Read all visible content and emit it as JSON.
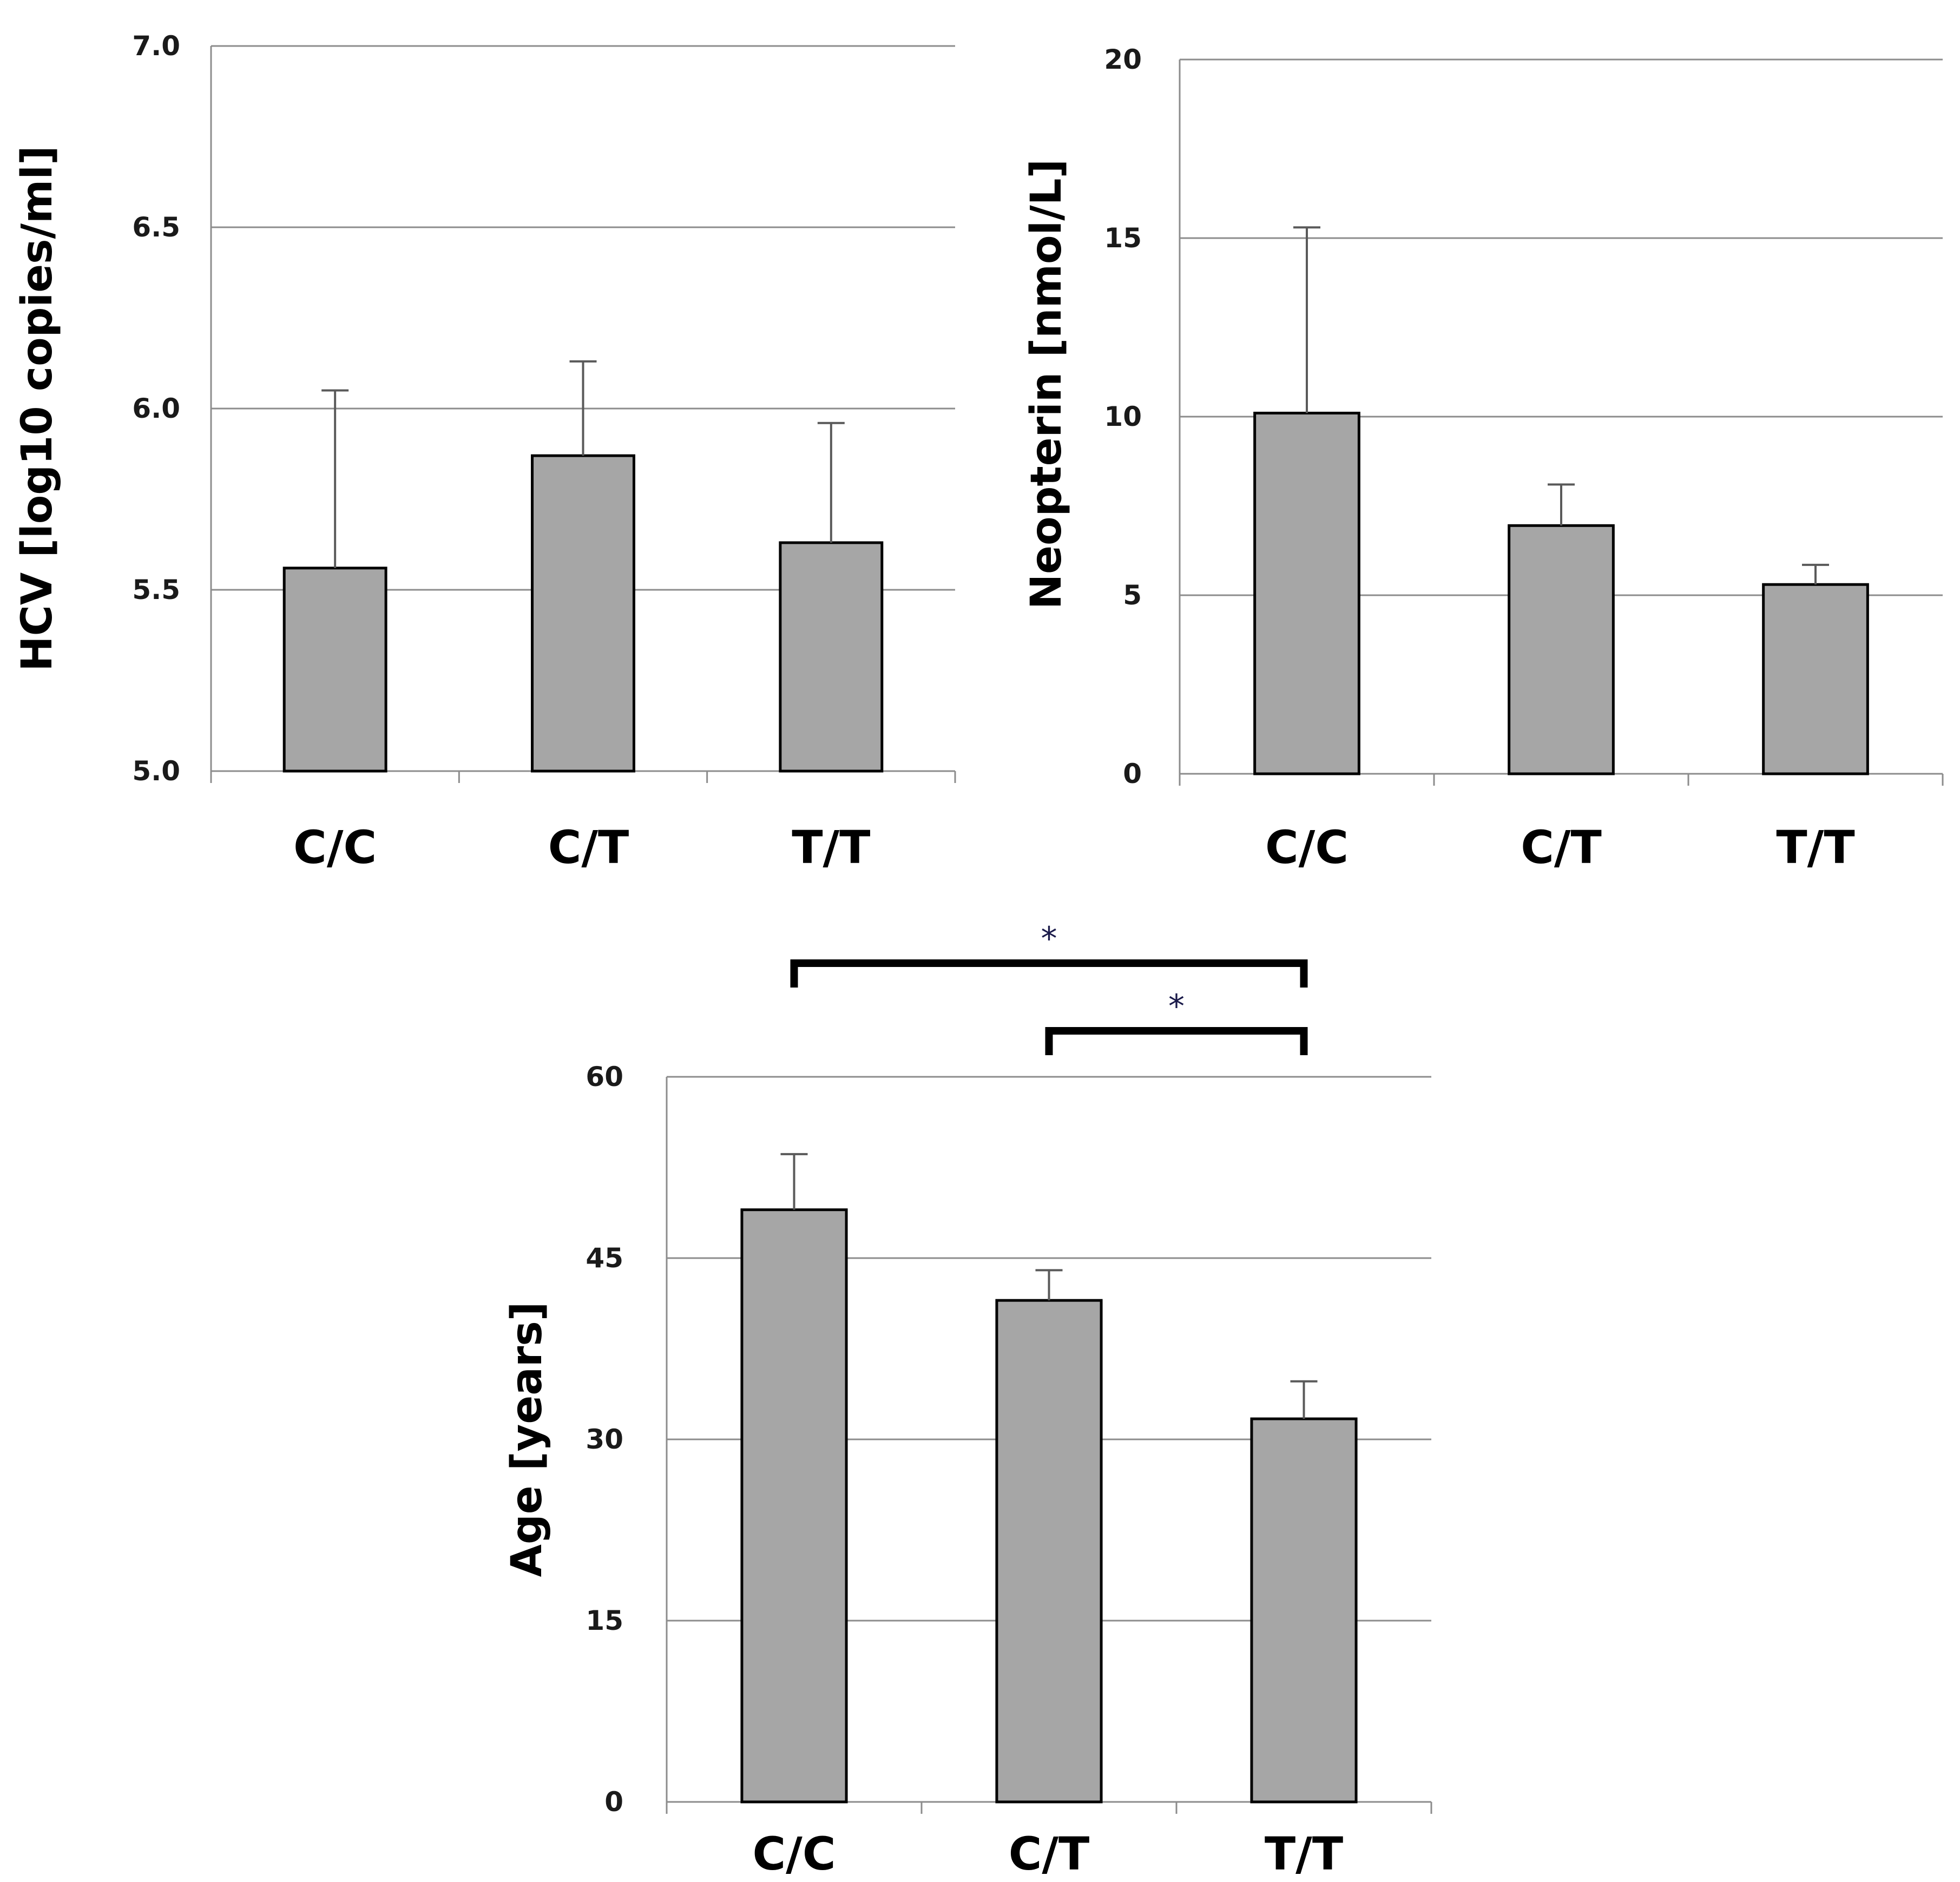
{
  "chart_data": [
    {
      "type": "bar",
      "id": "hcv",
      "title": "",
      "xlabel": "",
      "ylabel": "HCV [log10 copies/ml]",
      "categories": [
        "C/C",
        "C/T",
        "T/T"
      ],
      "values": [
        5.56,
        5.87,
        5.63
      ],
      "error_upper": [
        6.05,
        6.13,
        5.96
      ],
      "ylim": [
        5.0,
        7.0
      ],
      "yticks": [
        "5.0",
        "5.5",
        "6.0",
        "6.5",
        "7.0"
      ],
      "grid": true,
      "bar_color": "#a6a6a6",
      "significance": []
    },
    {
      "type": "bar",
      "id": "neopterin",
      "title": "",
      "xlabel": "",
      "ylabel": "Neopterin [nmol/L]",
      "categories": [
        "C/C",
        "C/T",
        "T/T"
      ],
      "values": [
        10.1,
        6.95,
        5.3
      ],
      "error_upper": [
        15.3,
        8.1,
        5.85
      ],
      "ylim": [
        0,
        20
      ],
      "yticks": [
        "0",
        "5",
        "10",
        "15",
        "20"
      ],
      "grid": true,
      "bar_color": "#a6a6a6",
      "significance": []
    },
    {
      "type": "bar",
      "id": "age",
      "title": "",
      "xlabel": "",
      "ylabel": "Age [years]",
      "categories": [
        "C/C",
        "C/T",
        "T/T"
      ],
      "values": [
        49.0,
        41.5,
        31.7
      ],
      "error_upper": [
        53.6,
        44.0,
        34.8
      ],
      "ylim": [
        0,
        60
      ],
      "yticks": [
        "0",
        "15",
        "30",
        "45",
        "60"
      ],
      "grid": true,
      "bar_color": "#a6a6a6",
      "significance": [
        {
          "from": "C/C",
          "to": "T/T",
          "label": "*"
        },
        {
          "from": "C/T",
          "to": "T/T",
          "label": "*"
        }
      ]
    }
  ]
}
